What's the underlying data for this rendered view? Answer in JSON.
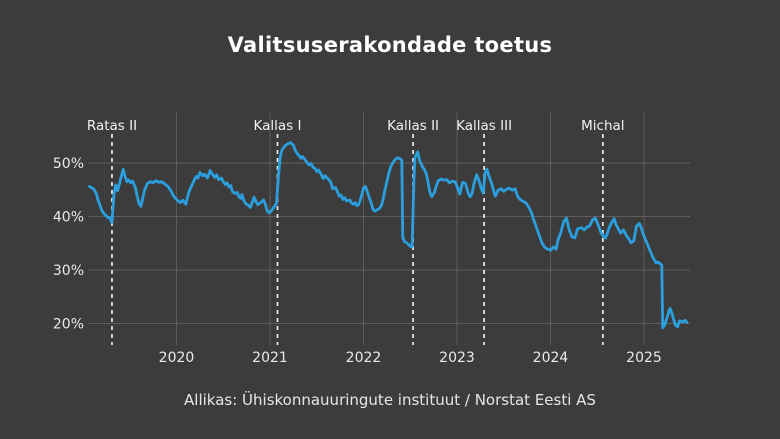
{
  "title": "Valitsuserakondade toetus",
  "source": "Allikas: Ühiskonnauuringute instituut / Norstat Eesti AS",
  "colors": {
    "background": "#3c3c3c",
    "line": "#2b9fdd",
    "grid": "#5e5e5e",
    "marker_line": "#eaeaea",
    "title_text": "#ffffff",
    "tick_text": "#e9e9e9",
    "annotation_text": "#f2f2f2",
    "source_text": "#e6e6e6"
  },
  "chart_data": {
    "type": "line",
    "title": "Valitsuserakondade toetus",
    "xlabel": "",
    "ylabel": "",
    "grid": true,
    "legend": "none",
    "x_axis": {
      "range": [
        2019.0,
        2025.55
      ],
      "ticks": [
        {
          "value": 2020,
          "label": "2020"
        },
        {
          "value": 2021,
          "label": "2021"
        },
        {
          "value": 2022,
          "label": "2022"
        },
        {
          "value": 2023,
          "label": "2023"
        },
        {
          "value": 2024,
          "label": "2024"
        },
        {
          "value": 2025,
          "label": "2025"
        }
      ]
    },
    "y_axis": {
      "unit": "%",
      "range": [
        17,
        56
      ],
      "ticks": [
        {
          "value": 50,
          "label": "50%"
        },
        {
          "value": 40,
          "label": "40%"
        },
        {
          "value": 30,
          "label": "30%"
        },
        {
          "value": 20,
          "label": "20%"
        }
      ]
    },
    "annotations": [
      {
        "label": "Ratas II",
        "x": 2019.31
      },
      {
        "label": "Kallas I",
        "x": 2021.08
      },
      {
        "label": "Kallas II",
        "x": 2022.53
      },
      {
        "label": "Kallas III",
        "x": 2023.29
      },
      {
        "label": "Michal",
        "x": 2024.56
      }
    ],
    "series": [
      {
        "name": "Valitsuserakondade toetus (%)",
        "points": [
          [
            2019.07,
            45.6
          ],
          [
            2019.11,
            45.2
          ],
          [
            2019.14,
            44.4
          ],
          [
            2019.16,
            43.1
          ],
          [
            2019.18,
            42.2
          ],
          [
            2019.2,
            41.2
          ],
          [
            2019.22,
            40.6
          ],
          [
            2019.24,
            40.3
          ],
          [
            2019.26,
            39.9
          ],
          [
            2019.28,
            39.7
          ],
          [
            2019.29,
            39.8
          ],
          [
            2019.3,
            39.1
          ],
          [
            2019.31,
            38.9
          ],
          [
            2019.33,
            44.0
          ],
          [
            2019.35,
            45.9
          ],
          [
            2019.37,
            44.8
          ],
          [
            2019.4,
            46.8
          ],
          [
            2019.43,
            48.8
          ],
          [
            2019.45,
            47.5
          ],
          [
            2019.47,
            46.5
          ],
          [
            2019.49,
            46.8
          ],
          [
            2019.51,
            46.3
          ],
          [
            2019.53,
            46.6
          ],
          [
            2019.56,
            45.4
          ],
          [
            2019.58,
            43.8
          ],
          [
            2019.6,
            42.4
          ],
          [
            2019.62,
            41.9
          ],
          [
            2019.64,
            43.5
          ],
          [
            2019.66,
            45.0
          ],
          [
            2019.69,
            46.2
          ],
          [
            2019.72,
            46.5
          ],
          [
            2019.75,
            46.3
          ],
          [
            2019.78,
            46.7
          ],
          [
            2019.81,
            46.4
          ],
          [
            2019.84,
            46.5
          ],
          [
            2019.88,
            46.0
          ],
          [
            2019.91,
            45.6
          ],
          [
            2019.94,
            44.8
          ],
          [
            2019.97,
            43.8
          ],
          [
            2020.0,
            43.2
          ],
          [
            2020.04,
            42.6
          ],
          [
            2020.07,
            43.0
          ],
          [
            2020.1,
            42.3
          ],
          [
            2020.13,
            44.5
          ],
          [
            2020.16,
            45.7
          ],
          [
            2020.19,
            46.8
          ],
          [
            2020.21,
            47.5
          ],
          [
            2020.23,
            47.2
          ],
          [
            2020.25,
            48.2
          ],
          [
            2020.28,
            47.6
          ],
          [
            2020.3,
            47.9
          ],
          [
            2020.33,
            47.2
          ],
          [
            2020.36,
            48.6
          ],
          [
            2020.38,
            48.0
          ],
          [
            2020.41,
            47.3
          ],
          [
            2020.43,
            47.8
          ],
          [
            2020.45,
            46.9
          ],
          [
            2020.48,
            47.2
          ],
          [
            2020.5,
            46.5
          ],
          [
            2020.52,
            46.0
          ],
          [
            2020.54,
            46.3
          ],
          [
            2020.56,
            45.5
          ],
          [
            2020.58,
            45.8
          ],
          [
            2020.6,
            44.6
          ],
          [
            2020.63,
            44.3
          ],
          [
            2020.65,
            44.5
          ],
          [
            2020.67,
            43.6
          ],
          [
            2020.69,
            43.4
          ],
          [
            2020.7,
            44.1
          ],
          [
            2020.72,
            43.0
          ],
          [
            2020.74,
            42.4
          ],
          [
            2020.76,
            42.2
          ],
          [
            2020.79,
            41.7
          ],
          [
            2020.81,
            42.6
          ],
          [
            2020.83,
            43.6
          ],
          [
            2020.85,
            42.8
          ],
          [
            2020.87,
            42.2
          ],
          [
            2020.9,
            42.6
          ],
          [
            2020.93,
            43.1
          ],
          [
            2020.95,
            42.3
          ],
          [
            2020.97,
            41.1
          ],
          [
            2020.99,
            40.7
          ],
          [
            2021.01,
            41.0
          ],
          [
            2021.03,
            41.4
          ],
          [
            2021.05,
            42.0
          ],
          [
            2021.07,
            42.4
          ],
          [
            2021.09,
            47.5
          ],
          [
            2021.11,
            51.3
          ],
          [
            2021.13,
            52.5
          ],
          [
            2021.16,
            53.2
          ],
          [
            2021.19,
            53.6
          ],
          [
            2021.22,
            53.8
          ],
          [
            2021.25,
            53.3
          ],
          [
            2021.27,
            52.4
          ],
          [
            2021.29,
            51.8
          ],
          [
            2021.31,
            51.4
          ],
          [
            2021.33,
            50.9
          ],
          [
            2021.35,
            51.2
          ],
          [
            2021.37,
            50.7
          ],
          [
            2021.4,
            50.0
          ],
          [
            2021.42,
            49.6
          ],
          [
            2021.44,
            49.9
          ],
          [
            2021.46,
            49.2
          ],
          [
            2021.48,
            49.0
          ],
          [
            2021.5,
            48.4
          ],
          [
            2021.52,
            48.7
          ],
          [
            2021.55,
            47.8
          ],
          [
            2021.57,
            47.1
          ],
          [
            2021.59,
            47.6
          ],
          [
            2021.61,
            47.2
          ],
          [
            2021.63,
            46.9
          ],
          [
            2021.65,
            46.4
          ],
          [
            2021.67,
            45.2
          ],
          [
            2021.7,
            45.4
          ],
          [
            2021.72,
            44.7
          ],
          [
            2021.74,
            43.8
          ],
          [
            2021.76,
            44.0
          ],
          [
            2021.78,
            43.2
          ],
          [
            2021.8,
            43.5
          ],
          [
            2021.82,
            42.9
          ],
          [
            2021.85,
            43.1
          ],
          [
            2021.87,
            42.6
          ],
          [
            2021.89,
            42.3
          ],
          [
            2021.91,
            42.6
          ],
          [
            2021.93,
            42.0
          ],
          [
            2021.95,
            42.3
          ],
          [
            2021.97,
            43.3
          ],
          [
            2022.0,
            45.3
          ],
          [
            2022.02,
            45.6
          ],
          [
            2022.04,
            44.7
          ],
          [
            2022.06,
            43.6
          ],
          [
            2022.08,
            42.7
          ],
          [
            2022.1,
            41.4
          ],
          [
            2022.12,
            41.0
          ],
          [
            2022.14,
            41.2
          ],
          [
            2022.17,
            41.5
          ],
          [
            2022.19,
            42.0
          ],
          [
            2022.21,
            43.2
          ],
          [
            2022.23,
            45.0
          ],
          [
            2022.25,
            46.5
          ],
          [
            2022.27,
            48.0
          ],
          [
            2022.29,
            49.3
          ],
          [
            2022.32,
            50.2
          ],
          [
            2022.34,
            50.7
          ],
          [
            2022.37,
            51.0
          ],
          [
            2022.39,
            50.8
          ],
          [
            2022.41,
            50.5
          ],
          [
            2022.42,
            36.0
          ],
          [
            2022.44,
            35.3
          ],
          [
            2022.47,
            35.0
          ],
          [
            2022.49,
            34.6
          ],
          [
            2022.51,
            34.3
          ],
          [
            2022.52,
            34.4
          ],
          [
            2022.54,
            47.0
          ],
          [
            2022.55,
            51.0
          ],
          [
            2022.58,
            52.1
          ],
          [
            2022.6,
            50.5
          ],
          [
            2022.63,
            49.3
          ],
          [
            2022.65,
            48.8
          ],
          [
            2022.67,
            48.1
          ],
          [
            2022.69,
            46.5
          ],
          [
            2022.71,
            44.5
          ],
          [
            2022.73,
            43.7
          ],
          [
            2022.76,
            44.6
          ],
          [
            2022.78,
            45.8
          ],
          [
            2022.8,
            46.7
          ],
          [
            2022.83,
            47.0
          ],
          [
            2022.86,
            46.8
          ],
          [
            2022.89,
            46.9
          ],
          [
            2022.92,
            46.3
          ],
          [
            2022.95,
            46.6
          ],
          [
            2022.98,
            46.5
          ],
          [
            2023.01,
            45.2
          ],
          [
            2023.03,
            44.2
          ],
          [
            2023.06,
            46.4
          ],
          [
            2023.09,
            46.2
          ],
          [
            2023.12,
            44.4
          ],
          [
            2023.14,
            43.7
          ],
          [
            2023.16,
            44.2
          ],
          [
            2023.18,
            46.0
          ],
          [
            2023.21,
            47.8
          ],
          [
            2023.23,
            47.0
          ],
          [
            2023.26,
            45.2
          ],
          [
            2023.28,
            44.4
          ],
          [
            2023.3,
            48.0
          ],
          [
            2023.32,
            48.9
          ],
          [
            2023.34,
            47.6
          ],
          [
            2023.37,
            46.2
          ],
          [
            2023.39,
            44.9
          ],
          [
            2023.41,
            43.8
          ],
          [
            2023.44,
            44.9
          ],
          [
            2023.47,
            45.2
          ],
          [
            2023.5,
            44.7
          ],
          [
            2023.53,
            45.1
          ],
          [
            2023.56,
            45.3
          ],
          [
            2023.59,
            44.9
          ],
          [
            2023.62,
            45.2
          ],
          [
            2023.65,
            43.7
          ],
          [
            2023.68,
            43.1
          ],
          [
            2023.71,
            42.8
          ],
          [
            2023.74,
            42.5
          ],
          [
            2023.76,
            41.9
          ],
          [
            2023.79,
            41.0
          ],
          [
            2023.82,
            39.4
          ],
          [
            2023.85,
            37.9
          ],
          [
            2023.88,
            36.4
          ],
          [
            2023.91,
            35.0
          ],
          [
            2023.94,
            34.2
          ],
          [
            2023.97,
            33.9
          ],
          [
            2024.0,
            33.7
          ],
          [
            2024.03,
            34.3
          ],
          [
            2024.06,
            33.9
          ],
          [
            2024.08,
            35.6
          ],
          [
            2024.11,
            37.0
          ],
          [
            2024.14,
            39.0
          ],
          [
            2024.17,
            39.7
          ],
          [
            2024.2,
            37.5
          ],
          [
            2024.23,
            36.2
          ],
          [
            2024.26,
            36.0
          ],
          [
            2024.29,
            37.7
          ],
          [
            2024.33,
            37.9
          ],
          [
            2024.36,
            37.5
          ],
          [
            2024.39,
            38.0
          ],
          [
            2024.42,
            38.3
          ],
          [
            2024.45,
            39.4
          ],
          [
            2024.48,
            39.7
          ],
          [
            2024.51,
            38.4
          ],
          [
            2024.54,
            37.0
          ],
          [
            2024.57,
            36.2
          ],
          [
            2024.59,
            36.0
          ],
          [
            2024.63,
            38.0
          ],
          [
            2024.66,
            39.0
          ],
          [
            2024.68,
            39.6
          ],
          [
            2024.7,
            38.5
          ],
          [
            2024.73,
            37.5
          ],
          [
            2024.75,
            36.9
          ],
          [
            2024.78,
            37.5
          ],
          [
            2024.81,
            36.5
          ],
          [
            2024.84,
            35.8
          ],
          [
            2024.86,
            35.1
          ],
          [
            2024.89,
            35.4
          ],
          [
            2024.92,
            38.2
          ],
          [
            2024.95,
            38.7
          ],
          [
            2024.97,
            37.9
          ],
          [
            2025.0,
            36.3
          ],
          [
            2025.03,
            35.1
          ],
          [
            2025.06,
            33.8
          ],
          [
            2025.1,
            32.2
          ],
          [
            2025.13,
            31.3
          ],
          [
            2025.15,
            31.5
          ],
          [
            2025.17,
            31.2
          ],
          [
            2025.19,
            30.9
          ],
          [
            2025.2,
            19.2
          ],
          [
            2025.22,
            19.7
          ],
          [
            2025.25,
            21.3
          ],
          [
            2025.27,
            22.5
          ],
          [
            2025.28,
            22.8
          ],
          [
            2025.3,
            21.9
          ],
          [
            2025.32,
            20.6
          ],
          [
            2025.34,
            19.6
          ],
          [
            2025.36,
            19.4
          ],
          [
            2025.38,
            20.5
          ],
          [
            2025.42,
            20.3
          ],
          [
            2025.44,
            20.6
          ],
          [
            2025.46,
            20.2
          ]
        ]
      }
    ]
  }
}
